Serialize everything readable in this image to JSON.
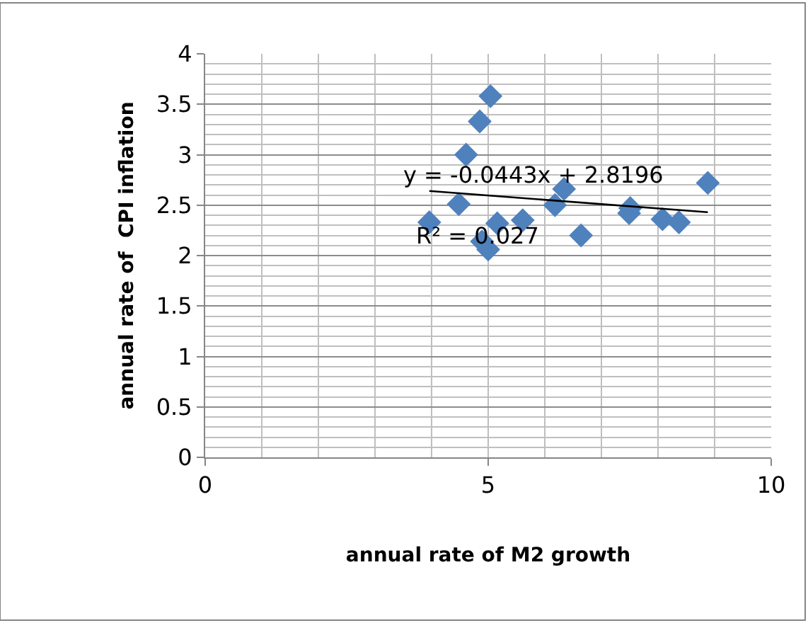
{
  "chart_data": {
    "type": "scatter",
    "xlabel": "annual rate of M2 growth",
    "ylabel": "annual rate of  CPI inflation",
    "xlim": [
      0,
      10
    ],
    "xticks": [
      0,
      5,
      10
    ],
    "ylim": [
      0,
      4
    ],
    "yticks": [
      0,
      0.5,
      1,
      1.5,
      2,
      2.5,
      3,
      3.5,
      4
    ],
    "grid": true,
    "marker": "diamond",
    "series": [
      {
        "color": "#4f81bd",
        "x": [
          5.04,
          4.85,
          4.61,
          8.88,
          6.34,
          6.18,
          4.48,
          3.96,
          5.61,
          5.16,
          5.0,
          4.89,
          6.64,
          7.49,
          7.51,
          8.08,
          8.37
        ],
        "values": [
          3.58,
          3.33,
          3.0,
          2.72,
          2.66,
          2.5,
          2.51,
          2.33,
          2.35,
          2.32,
          2.06,
          2.14,
          2.2,
          2.42,
          2.47,
          2.36,
          2.33
        ]
      },
      {
        "type": "line",
        "color": "#000000",
        "marker": "none",
        "x": [
          3.96,
          8.88
        ],
        "values": [
          2.64,
          2.43
        ]
      }
    ],
    "annotations": [
      "y = -0.0443x + 2.8196",
      "R² = 0.027"
    ]
  }
}
